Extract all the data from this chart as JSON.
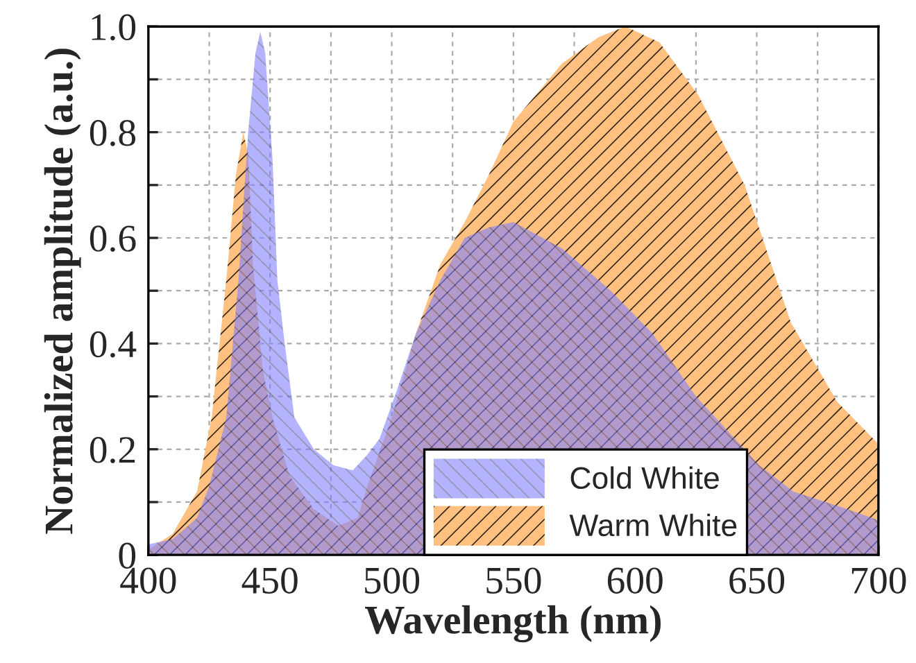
{
  "chart_data": {
    "type": "area",
    "xlabel": "Wavelength (nm)",
    "ylabel": "Normalized amplitude (a.u.)",
    "xlim": [
      400,
      700
    ],
    "ylim": [
      0,
      1.0
    ],
    "xticks": [
      400,
      {
        "value": 425,
        "label": null
      },
      450,
      {
        "value": 475,
        "label": null
      },
      500,
      {
        "value": 525,
        "label": null
      },
      550,
      {
        "value": 575,
        "label": null
      },
      600,
      {
        "value": 625,
        "label": null
      },
      650,
      {
        "value": 675,
        "label": null
      },
      700
    ],
    "yticks": [
      0,
      {
        "value": 0.1,
        "label": null
      },
      {
        "value": 0.2,
        "label": "0.2"
      },
      {
        "value": 0.3,
        "label": null
      },
      {
        "value": 0.4,
        "label": "0.4"
      },
      {
        "value": 0.5,
        "label": null
      },
      {
        "value": 0.6,
        "label": "0.6"
      },
      {
        "value": 0.7,
        "label": null
      },
      {
        "value": 0.8,
        "label": "0.8"
      },
      {
        "value": 0.9,
        "label": null
      },
      {
        "value": 1.0,
        "label": "1.0"
      }
    ],
    "grid": true,
    "legend": "bottom right",
    "series": [
      {
        "name": "Cold White",
        "color": "#8080ff",
        "x": [
          400,
          410,
          420,
          425,
          432,
          437,
          441,
          444,
          446,
          448,
          451,
          453,
          456,
          460,
          468,
          476,
          484,
          490,
          495,
          502,
          510,
          520,
          530,
          540,
          550,
          570,
          590,
          607,
          625,
          651,
          665,
          685,
          700
        ],
        "values": [
          0.02,
          0.03,
          0.07,
          0.13,
          0.26,
          0.52,
          0.8,
          0.95,
          0.99,
          0.95,
          0.75,
          0.52,
          0.4,
          0.26,
          0.2,
          0.17,
          0.16,
          0.19,
          0.22,
          0.31,
          0.42,
          0.52,
          0.6,
          0.62,
          0.63,
          0.58,
          0.5,
          0.42,
          0.3,
          0.17,
          0.12,
          0.09,
          0.066
        ]
      },
      {
        "name": "Warm White",
        "color": "#ffc080",
        "x": [
          400,
          410,
          420,
          426,
          432,
          436,
          439,
          441,
          443,
          447,
          451,
          458,
          468,
          478,
          486,
          490,
          500,
          510,
          520,
          530,
          540,
          550,
          570,
          585,
          596,
          610,
          626,
          645,
          664,
          683,
          700
        ],
        "values": [
          0.01,
          0.04,
          0.12,
          0.26,
          0.52,
          0.72,
          0.8,
          0.76,
          0.55,
          0.35,
          0.26,
          0.15,
          0.087,
          0.055,
          0.07,
          0.13,
          0.26,
          0.42,
          0.55,
          0.63,
          0.72,
          0.82,
          0.93,
          0.98,
          1.0,
          0.97,
          0.87,
          0.7,
          0.44,
          0.29,
          0.21
        ]
      }
    ]
  }
}
